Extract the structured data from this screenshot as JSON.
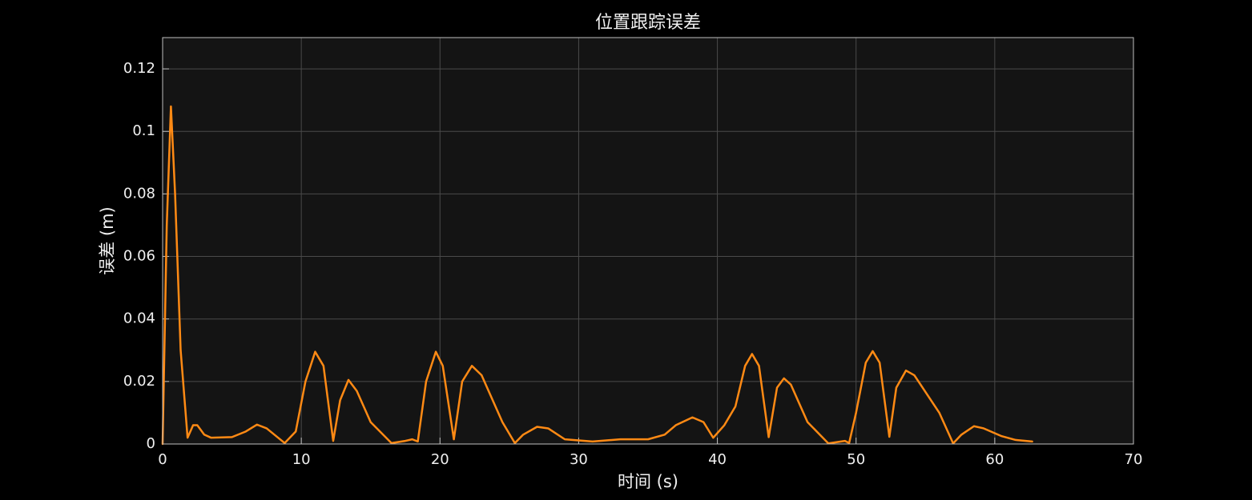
{
  "chart_data": {
    "type": "line",
    "title": "位置跟踪误差",
    "x_label": "时间 (s)",
    "y_label": "误差 (m)",
    "color": "#ff8a14",
    "grid": true,
    "xlim": [
      0,
      70
    ],
    "ylim": [
      0,
      0.13
    ],
    "xticks": [
      0,
      10,
      20,
      30,
      40,
      50,
      60,
      70
    ],
    "yticks": [
      0,
      0.02,
      0.04,
      0.06,
      0.08,
      0.1,
      0.12
    ],
    "x": [
      0,
      0.3,
      0.6,
      0.9,
      1.3,
      1.8,
      2.2,
      2.5,
      3,
      3.5,
      5,
      6,
      6.8,
      7.5,
      8.8,
      9.6,
      10.3,
      11,
      11.6,
      12.3,
      12.8,
      13.4,
      14,
      15,
      16.5,
      17.5,
      18,
      18.4,
      19,
      19.7,
      20.2,
      21,
      21.6,
      22.3,
      23,
      24.5,
      25.4,
      26,
      27,
      27.8,
      29,
      31,
      33,
      35,
      36.2,
      37,
      38.2,
      39,
      39.7,
      40.5,
      41.3,
      42,
      42.5,
      43,
      43.7,
      44.3,
      44.8,
      45.3,
      46.5,
      48,
      49.2,
      49.5,
      50,
      50.7,
      51.2,
      51.7,
      52.4,
      52.9,
      53.6,
      54.2,
      56,
      57,
      57.6,
      58.5,
      59.2,
      60.5,
      61.5,
      62.7
    ],
    "values": [
      0,
      0.07,
      0.108,
      0.08,
      0.03,
      0.002,
      0.006,
      0.006,
      0.003,
      0.002,
      0.0022,
      0.004,
      0.0062,
      0.005,
      0.0003,
      0.004,
      0.02,
      0.0295,
      0.025,
      0.001,
      0.014,
      0.0205,
      0.017,
      0.007,
      0.0003,
      0.001,
      0.0015,
      0.0008,
      0.02,
      0.0295,
      0.025,
      0.0015,
      0.02,
      0.025,
      0.022,
      0.007,
      0.0003,
      0.003,
      0.0055,
      0.005,
      0.0015,
      0.0008,
      0.0015,
      0.0015,
      0.003,
      0.006,
      0.0085,
      0.007,
      0.002,
      0.006,
      0.012,
      0.025,
      0.0288,
      0.025,
      0.0022,
      0.018,
      0.021,
      0.019,
      0.007,
      0.0002,
      0.001,
      0.0003,
      0.01,
      0.026,
      0.0297,
      0.026,
      0.0023,
      0.018,
      0.0235,
      0.022,
      0.01,
      0.0002,
      0.003,
      0.0057,
      0.005,
      0.0025,
      0.0013,
      0.0008
    ]
  }
}
